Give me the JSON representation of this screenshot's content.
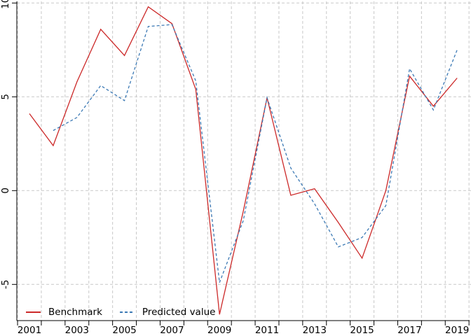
{
  "chart_data": {
    "type": "line",
    "title": "",
    "xlabel": "",
    "ylabel": "",
    "x": [
      2001,
      2002,
      2003,
      2004,
      2005,
      2006,
      2007,
      2008,
      2009,
      2010,
      2011,
      2012,
      2013,
      2014,
      2015,
      2016,
      2017,
      2018,
      2019
    ],
    "series": [
      {
        "name": "Benchmark",
        "color": "#cc2929",
        "line_style": "solid",
        "values": [
          4.1,
          2.4,
          5.8,
          8.6,
          7.2,
          9.8,
          8.9,
          5.4,
          -6.6,
          -1.1,
          4.95,
          -0.25,
          0.1,
          -1.7,
          -3.6,
          0.0,
          6.1,
          4.5,
          6.0
        ]
      },
      {
        "name": "Predicted value",
        "color": "#3d7ab5",
        "line_style": "dashed",
        "values": [
          null,
          3.2,
          3.9,
          5.6,
          4.8,
          8.75,
          8.85,
          5.85,
          -4.9,
          -1.6,
          4.95,
          1.2,
          -0.7,
          -3.0,
          -2.5,
          -0.8,
          6.5,
          4.3,
          7.5
        ]
      }
    ],
    "xtick_labels": [
      "2001",
      "2003",
      "2005",
      "2007",
      "2009",
      "2011",
      "2013",
      "2015",
      "2017",
      "2019"
    ],
    "yticks": [
      -5,
      0,
      5,
      10
    ],
    "ytick_labels": [
      "-5",
      "0",
      "5",
      "10"
    ],
    "ylim": [
      -6.95,
      10.1
    ],
    "grid": true,
    "grid_style": "dashed",
    "legend_position": "bottom-left"
  },
  "colors": {
    "background": "#ffffff",
    "grid": "#c8c8c8",
    "axis": "#000000",
    "text": "#000000"
  }
}
